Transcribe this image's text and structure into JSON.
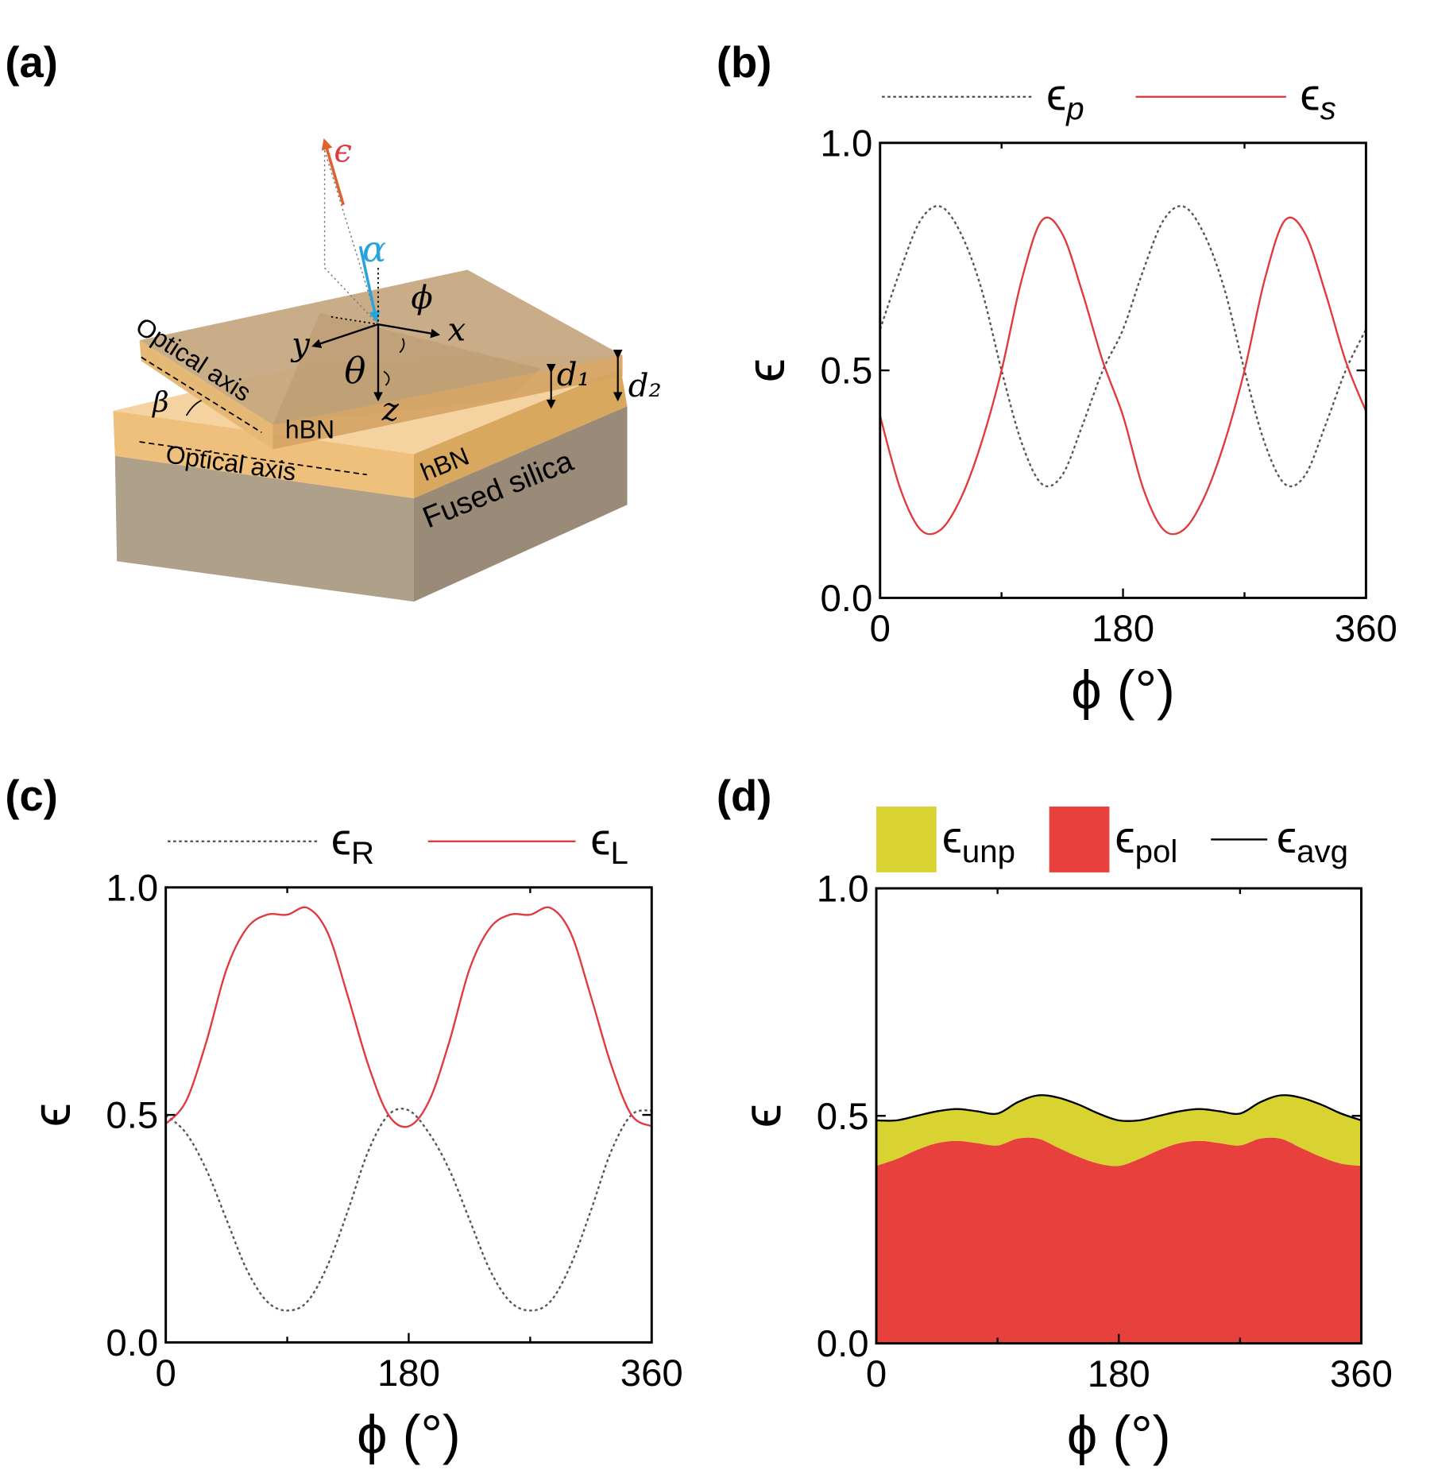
{
  "diagram": {
    "panel": "(a)",
    "labels": [
      "ϵ",
      "α",
      "ϕ",
      "x",
      "y",
      "θ",
      "z",
      "d₁",
      "d₂",
      "Optical axis",
      "β",
      "hBN",
      "Optical axis",
      "hBN",
      "Fused silica"
    ]
  },
  "chart_data": [
    {
      "panel": "(b)",
      "type": "line",
      "xlabel": "ϕ (°)",
      "ylabel": "ϵ",
      "legend_italic": true,
      "x": [
        0,
        15,
        30,
        45,
        60,
        75,
        90,
        105,
        120,
        135,
        150,
        165,
        180,
        195,
        210,
        225,
        240,
        255,
        270,
        285,
        300,
        315,
        330,
        345,
        360
      ],
      "xlim": [
        0,
        360
      ],
      "xticks": [
        0,
        180,
        360
      ],
      "xminorticks": [
        90,
        270
      ],
      "ylim": [
        0,
        1
      ],
      "yticks": [
        {
          "value": 0,
          "label": "0.0"
        },
        {
          "value": 0.5,
          "label": "0.5"
        },
        {
          "value": 1,
          "label": "1.0"
        }
      ],
      "series": [
        {
          "name": "ϵp",
          "color": "#555555",
          "dash": "dotted",
          "values": [
            0.59,
            0.72,
            0.83,
            0.86,
            0.8,
            0.68,
            0.5,
            0.34,
            0.25,
            0.27,
            0.38,
            0.5,
            0.59,
            0.72,
            0.83,
            0.86,
            0.8,
            0.68,
            0.5,
            0.34,
            0.25,
            0.27,
            0.38,
            0.5,
            0.59
          ]
        },
        {
          "name": "ϵs",
          "color": "#e0393e",
          "values": [
            0.4,
            0.24,
            0.15,
            0.15,
            0.22,
            0.34,
            0.5,
            0.7,
            0.83,
            0.8,
            0.67,
            0.52,
            0.4,
            0.24,
            0.15,
            0.15,
            0.22,
            0.34,
            0.5,
            0.7,
            0.83,
            0.8,
            0.67,
            0.52,
            0.41
          ]
        }
      ]
    },
    {
      "panel": "(c)",
      "type": "line",
      "xlabel": "ϕ (°)",
      "ylabel": "ϵ",
      "x": [
        0,
        15,
        30,
        45,
        60,
        75,
        90,
        105,
        120,
        135,
        150,
        165,
        180,
        195,
        210,
        225,
        240,
        255,
        270,
        285,
        300,
        315,
        330,
        345,
        360
      ],
      "xlim": [
        0,
        360
      ],
      "xticks": [
        0,
        180,
        360
      ],
      "xminorticks": [
        90,
        270
      ],
      "ylim": [
        0,
        1
      ],
      "yticks": [
        {
          "value": 0,
          "label": "0.0"
        },
        {
          "value": 0.5,
          "label": "0.5"
        },
        {
          "value": 1,
          "label": "1.0"
        }
      ],
      "series": [
        {
          "name": "ϵR",
          "color": "#555555",
          "dash": "dotted",
          "values": [
            0.5,
            0.46,
            0.38,
            0.27,
            0.16,
            0.09,
            0.07,
            0.09,
            0.17,
            0.29,
            0.42,
            0.5,
            0.51,
            0.46,
            0.38,
            0.27,
            0.16,
            0.09,
            0.07,
            0.09,
            0.17,
            0.29,
            0.42,
            0.5,
            0.51
          ]
        },
        {
          "name": "ϵL",
          "color": "#e0393e",
          "values": [
            0.48,
            0.53,
            0.66,
            0.82,
            0.91,
            0.94,
            0.94,
            0.955,
            0.9,
            0.76,
            0.61,
            0.5,
            0.475,
            0.53,
            0.66,
            0.82,
            0.91,
            0.94,
            0.94,
            0.955,
            0.9,
            0.76,
            0.61,
            0.5,
            0.475
          ]
        }
      ]
    },
    {
      "panel": "(d)",
      "type": "stacked_area",
      "xlabel": "ϕ (°)",
      "ylabel": "ϵ",
      "x": [
        0,
        15,
        30,
        45,
        60,
        75,
        90,
        105,
        120,
        135,
        150,
        165,
        180,
        195,
        210,
        225,
        240,
        255,
        270,
        285,
        300,
        315,
        330,
        345,
        360
      ],
      "xlim": [
        0,
        360
      ],
      "xticks": [
        0,
        180,
        360
      ],
      "xminorticks": [
        90,
        270
      ],
      "ylim": [
        0,
        1
      ],
      "yticks": [
        {
          "value": 0,
          "label": "0.0"
        },
        {
          "value": 0.5,
          "label": "0.5"
        },
        {
          "value": 1,
          "label": "1.0"
        }
      ],
      "series": [
        {
          "name": "ϵunp",
          "color": "#d9d332",
          "area": true,
          "values": [
            0.1,
            0.085,
            0.075,
            0.07,
            0.07,
            0.07,
            0.07,
            0.08,
            0.095,
            0.11,
            0.115,
            0.11,
            0.1,
            0.085,
            0.075,
            0.07,
            0.07,
            0.07,
            0.07,
            0.08,
            0.095,
            0.11,
            0.115,
            0.11,
            0.1
          ]
        },
        {
          "name": "ϵpol",
          "color": "#e8403d",
          "area": true,
          "values": [
            0.39,
            0.405,
            0.425,
            0.44,
            0.445,
            0.44,
            0.435,
            0.45,
            0.45,
            0.43,
            0.41,
            0.395,
            0.39,
            0.405,
            0.425,
            0.44,
            0.445,
            0.44,
            0.435,
            0.45,
            0.45,
            0.43,
            0.41,
            0.395,
            0.39
          ]
        },
        {
          "name": "ϵavg",
          "color": "#000000",
          "values": [
            0.49,
            0.49,
            0.5,
            0.51,
            0.515,
            0.51,
            0.505,
            0.53,
            0.545,
            0.54,
            0.525,
            0.505,
            0.49,
            0.49,
            0.5,
            0.51,
            0.515,
            0.51,
            0.505,
            0.53,
            0.545,
            0.54,
            0.525,
            0.505,
            0.49
          ]
        }
      ]
    }
  ]
}
